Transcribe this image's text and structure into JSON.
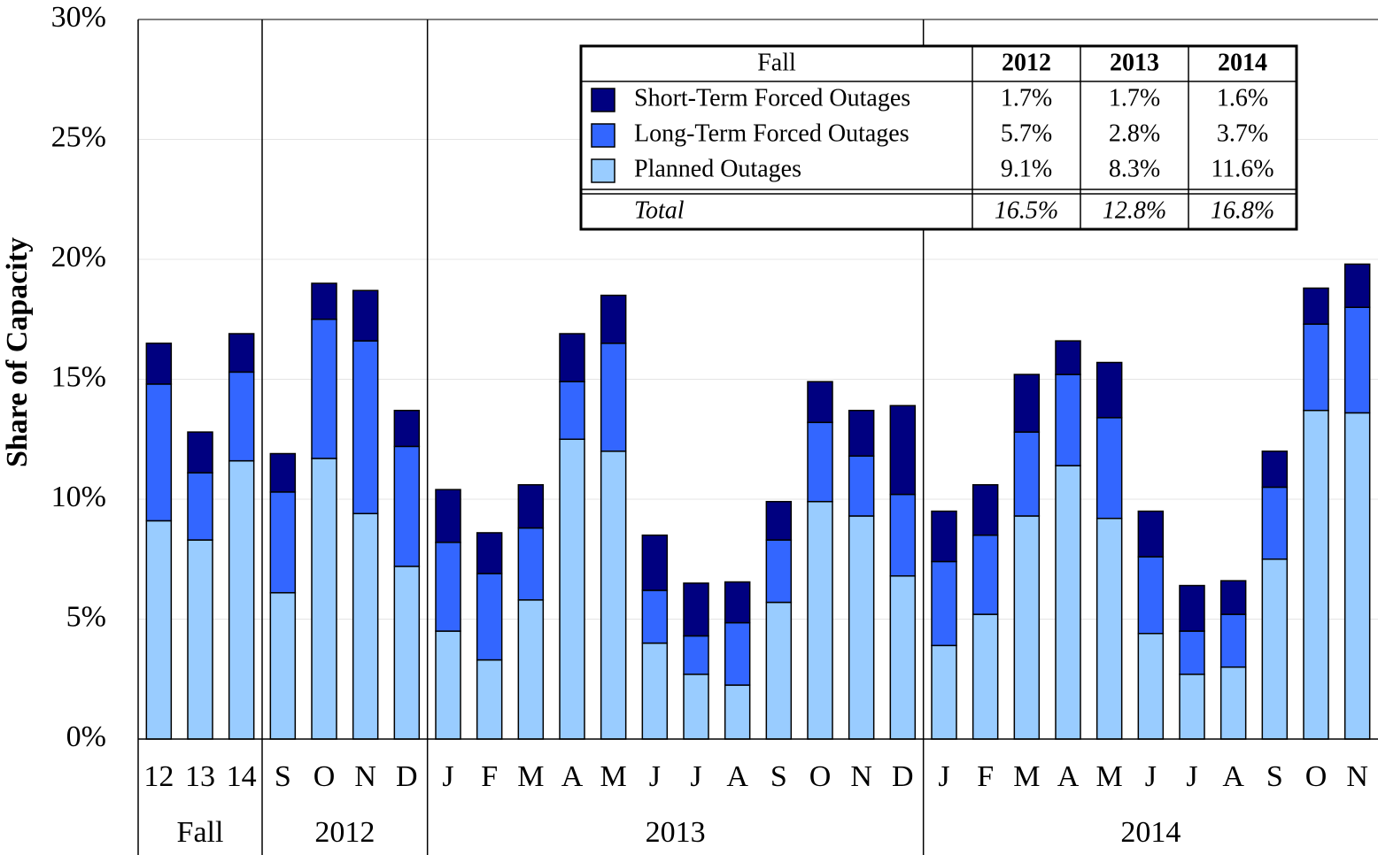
{
  "chart_data": {
    "type": "stacked_bar",
    "ylabel": "Share of Capacity",
    "categories": [
      "12",
      "13",
      "14",
      "S",
      "O",
      "N",
      "D",
      "J",
      "F",
      "M",
      "A",
      "M",
      "J",
      "J",
      "A",
      "S",
      "O",
      "N",
      "D",
      "J",
      "F",
      "M",
      "A",
      "M",
      "J",
      "J",
      "A",
      "S",
      "O",
      "N"
    ],
    "category_groups": [
      "Fall",
      "Fall",
      "Fall",
      "2012",
      "2012",
      "2012",
      "2012",
      "2013",
      "2013",
      "2013",
      "2013",
      "2013",
      "2013",
      "2013",
      "2013",
      "2013",
      "2013",
      "2013",
      "2013",
      "2014",
      "2014",
      "2014",
      "2014",
      "2014",
      "2014",
      "2014",
      "2014",
      "2014",
      "2014",
      "2014"
    ],
    "series": [
      {
        "name": "Planned Outages",
        "color": "#99ccff",
        "values": [
          9.1,
          8.3,
          11.6,
          6.1,
          11.7,
          9.4,
          7.2,
          4.5,
          3.3,
          5.8,
          12.5,
          12.0,
          4.0,
          2.7,
          2.25,
          5.7,
          9.9,
          9.3,
          6.8,
          3.9,
          5.2,
          9.3,
          11.4,
          9.2,
          4.4,
          2.7,
          3.0,
          7.5,
          13.7,
          13.6
        ]
      },
      {
        "name": "Long-Term Forced Outages",
        "color": "#3366ff",
        "values": [
          5.7,
          2.8,
          3.7,
          4.2,
          5.8,
          7.2,
          5.0,
          3.7,
          3.6,
          3.0,
          2.4,
          4.5,
          2.2,
          1.6,
          2.6,
          2.6,
          3.3,
          2.5,
          3.4,
          3.5,
          3.3,
          3.5,
          3.8,
          4.2,
          3.2,
          1.8,
          2.2,
          3.0,
          3.6,
          4.4
        ]
      },
      {
        "name": "Short-Term Forced Outages",
        "color": "#000080",
        "values": [
          1.7,
          1.7,
          1.6,
          1.6,
          1.5,
          2.1,
          1.5,
          2.2,
          1.7,
          1.8,
          2.0,
          2.0,
          2.3,
          2.2,
          1.7,
          1.6,
          1.7,
          1.9,
          3.7,
          2.1,
          2.1,
          2.4,
          1.4,
          2.3,
          1.9,
          1.9,
          1.4,
          1.5,
          1.5,
          1.8
        ]
      }
    ],
    "ylim": [
      0,
      30
    ],
    "yticks": [
      {
        "value": 0,
        "label": "0%"
      },
      {
        "value": 5,
        "label": "5%"
      },
      {
        "value": 10,
        "label": "10%"
      },
      {
        "value": 15,
        "label": "15%"
      },
      {
        "value": 20,
        "label": "20%"
      },
      {
        "value": 25,
        "label": "25%"
      },
      {
        "value": 30,
        "label": "30%"
      }
    ],
    "grid": true,
    "table": {
      "header": [
        "Fall",
        "2012",
        "2013",
        "2014"
      ],
      "rows": [
        {
          "series": 2,
          "label": "Short-Term Forced Outages",
          "cells": [
            "1.7%",
            "1.7%",
            "1.6%"
          ]
        },
        {
          "series": 1,
          "label": "Long-Term Forced Outages",
          "cells": [
            "5.7%",
            "2.8%",
            "3.7%"
          ]
        },
        {
          "series": 0,
          "label": "Planned Outages",
          "cells": [
            "9.1%",
            "8.3%",
            "11.6%"
          ]
        }
      ],
      "total": {
        "label": "Total",
        "cells": [
          "16.5%",
          "12.8%",
          "16.8%"
        ]
      }
    }
  }
}
